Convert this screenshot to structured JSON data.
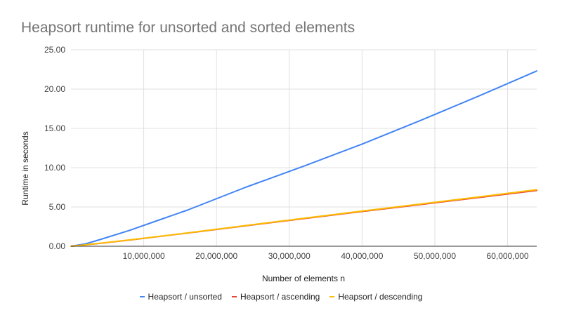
{
  "title": "Heapsort runtime for unsorted and sorted elements",
  "chart_data": {
    "type": "line",
    "title": "Heapsort runtime for unsorted and sorted elements",
    "xlabel": "Number of elements n",
    "ylabel": "Runtime in seconds",
    "xlim": [
      0,
      64000000
    ],
    "ylim": [
      0,
      25
    ],
    "x_ticks": [
      10000000,
      20000000,
      30000000,
      40000000,
      50000000,
      60000000
    ],
    "x_tick_labels": [
      "10,000,000",
      "20,000,000",
      "30,000,000",
      "40,000,000",
      "50,000,000",
      "60,000,000"
    ],
    "y_ticks": [
      0,
      5,
      10,
      15,
      20,
      25
    ],
    "y_tick_labels": [
      "0.00",
      "5.00",
      "10.00",
      "15.00",
      "20.00",
      "25.00"
    ],
    "grid": true,
    "legend_position": "bottom",
    "x": [
      0,
      2000000,
      4000000,
      8000000,
      12000000,
      16000000,
      24000000,
      32000000,
      40000000,
      48000000,
      56000000,
      64000000
    ],
    "series": [
      {
        "name": "Heapsort / unsorted",
        "color": "#4285f4",
        "values": [
          0,
          0.3,
          0.85,
          2.0,
          3.3,
          4.6,
          7.5,
          10.2,
          13.0,
          16.0,
          19.1,
          22.3
        ]
      },
      {
        "name": "Heapsort / ascending",
        "color": "#ea4335",
        "values": [
          0,
          0.17,
          0.37,
          0.78,
          1.22,
          1.68,
          2.6,
          3.52,
          4.42,
          5.3,
          6.2,
          7.1
        ]
      },
      {
        "name": "Heapsort / descending",
        "color": "#fbbc04",
        "values": [
          0,
          0.18,
          0.38,
          0.8,
          1.24,
          1.7,
          2.63,
          3.56,
          4.47,
          5.37,
          6.28,
          7.2
        ]
      }
    ]
  }
}
